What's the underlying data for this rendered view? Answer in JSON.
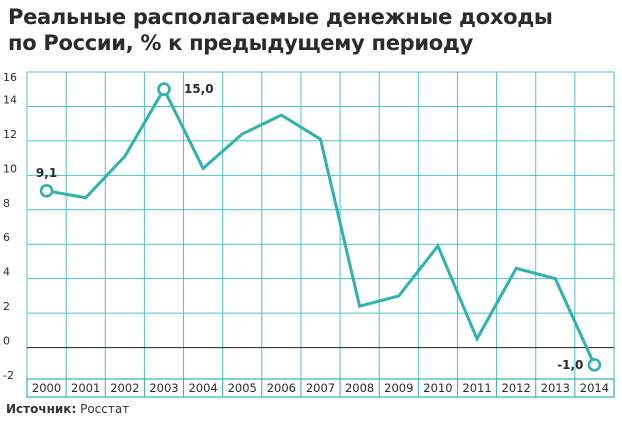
{
  "title_line1": "Реальные располагаемые денежные доходы",
  "title_line2": "по России, % к предыдущему периоду",
  "source_label": "Источник:",
  "source_value": "Росстат",
  "colors": {
    "line": "#2fb3ae",
    "grid": "#4fc4bd",
    "axis": "#3a3a3a",
    "axis_band": "#2fb3ae",
    "text": "#2b2b2b"
  },
  "chart_data": {
    "type": "line",
    "title": "Реальные располагаемые денежные доходы по России, % к предыдущему периоду",
    "x": [
      "2000",
      "2001",
      "2002",
      "2003",
      "2004",
      "2005",
      "2006",
      "2007",
      "2008",
      "2009",
      "2010",
      "2011",
      "2012",
      "2013",
      "2014"
    ],
    "series": [
      {
        "values": [
          9.1,
          8.7,
          11.1,
          15.0,
          10.4,
          12.4,
          13.5,
          12.1,
          2.4,
          3.0,
          5.9,
          0.5,
          4.6,
          4.0,
          -1.0
        ]
      }
    ],
    "ylim": [
      -2,
      16
    ],
    "yticks": [
      "-2",
      "0",
      "2",
      "4",
      "6",
      "8",
      "10",
      "12",
      "14",
      "16"
    ],
    "annotations": [
      {
        "index": 0,
        "label": "9,1"
      },
      {
        "index": 3,
        "label": "15,0"
      },
      {
        "index": 14,
        "label": "-1,0"
      }
    ],
    "grid": true
  }
}
